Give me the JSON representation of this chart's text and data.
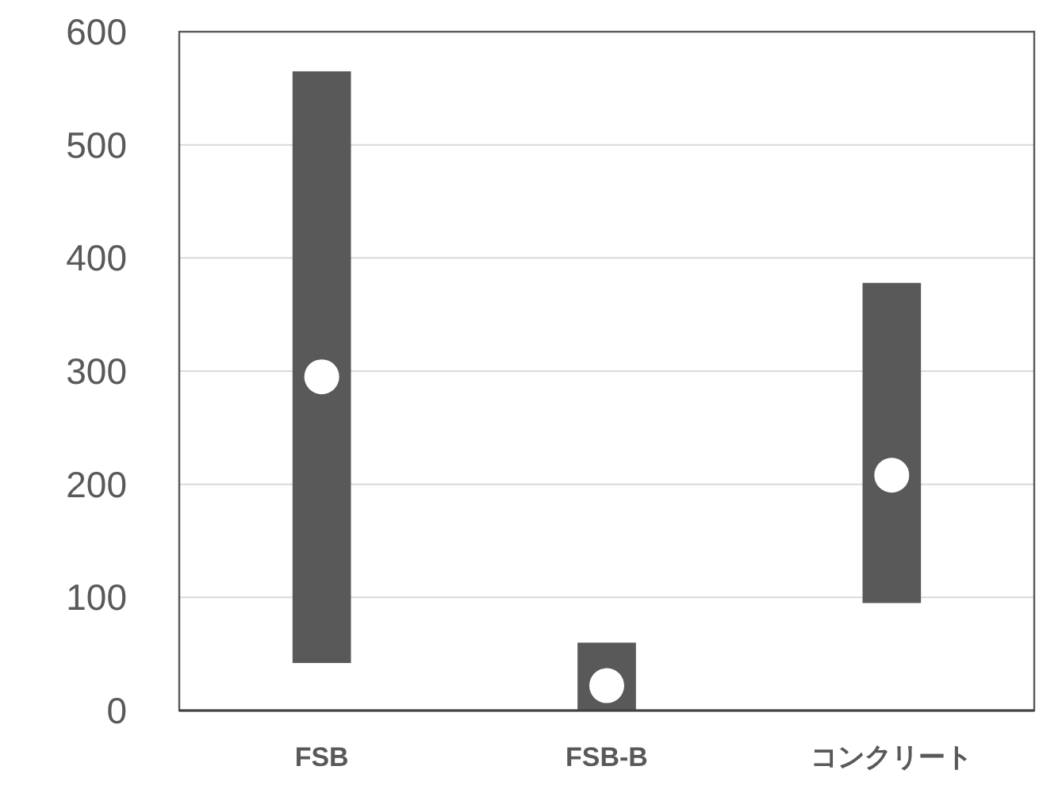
{
  "chart_data": {
    "type": "bar",
    "categories": [
      "FSB",
      "FSB-B",
      "コンクリート"
    ],
    "series": [
      {
        "color": "#595959",
        "base": [
          42,
          0,
          95
        ],
        "values": [
          523,
          60,
          283
        ]
      },
      {
        "type": "scatter",
        "color": "#ffffff",
        "marker": "circle",
        "x": [
          "FSB",
          "FSB-B",
          "コンクリート"
        ],
        "values": [
          295,
          22,
          208
        ]
      }
    ],
    "ylim": [
      0,
      600
    ],
    "yticks": [
      0,
      100,
      200,
      300,
      400,
      500,
      600
    ],
    "grid": "y"
  }
}
